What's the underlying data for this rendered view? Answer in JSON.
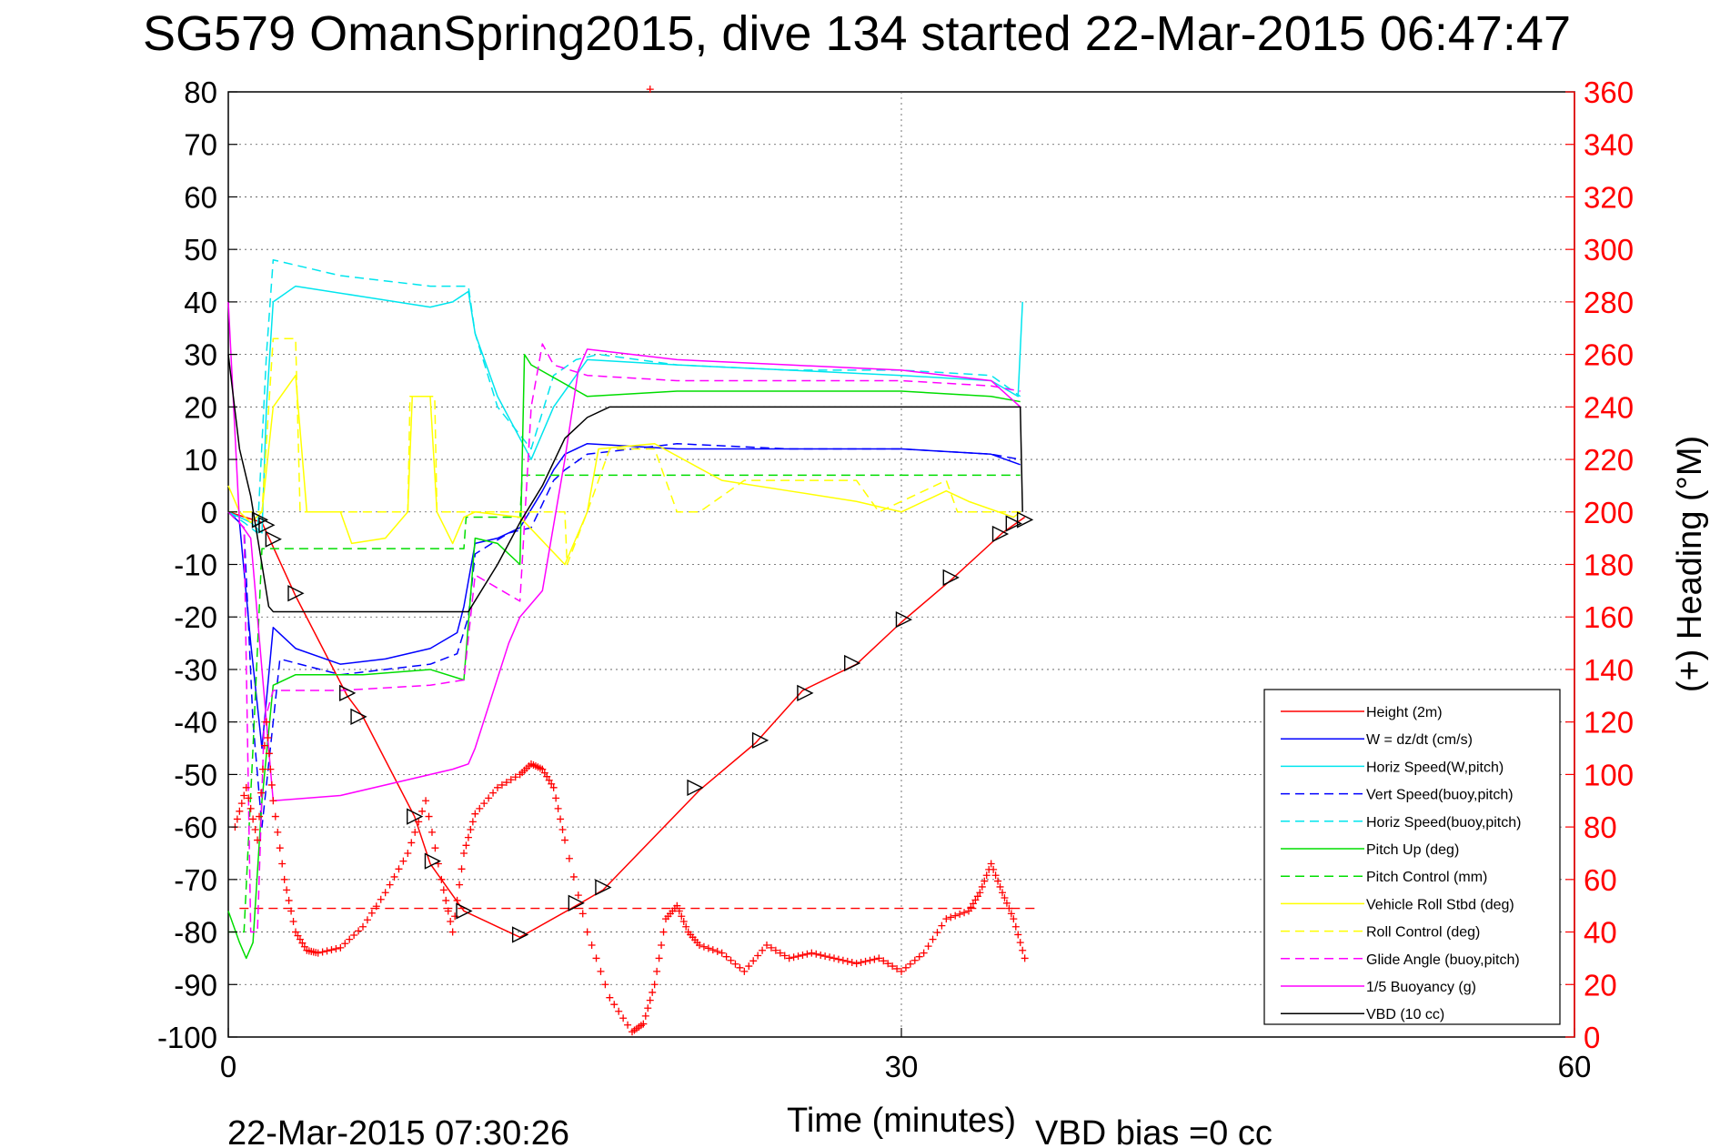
{
  "title": "SG579 OmanSpring2015, dive 134 started 22-Mar-2015 06:47:47",
  "footer": {
    "timestamp": "22-Mar-2015 07:30:26",
    "vbd_bias": "VBD bias =0 cc"
  },
  "chart_data": {
    "type": "line",
    "title": "SG579 OmanSpring2015, dive 134 started 22-Mar-2015 06:47:47",
    "xlabel": "Time (minutes)",
    "ylabel": "",
    "ylabel_right": "(+) Heading (°M)",
    "xlim": [
      0,
      60
    ],
    "ylim": [
      -100,
      80
    ],
    "ylim_right": [
      0,
      360
    ],
    "xticks": [
      0,
      30,
      60
    ],
    "xtick_labels": [
      "0",
      "30",
      "60"
    ],
    "yticks": [
      80,
      70,
      60,
      50,
      40,
      30,
      20,
      10,
      0,
      -10,
      -20,
      -30,
      -40,
      -50,
      -60,
      -70,
      -80,
      -90,
      -100
    ],
    "ytick_labels": [
      "80",
      "70",
      "60",
      "50",
      "40",
      "30",
      "20",
      "10",
      "0",
      "-10",
      "-20",
      "-30",
      "-40",
      "-50",
      "-60",
      "-70",
      "-80",
      "-90",
      "-100"
    ],
    "yticks_right": [
      360,
      340,
      320,
      300,
      280,
      260,
      240,
      220,
      200,
      180,
      160,
      140,
      120,
      100,
      80,
      60,
      40,
      20,
      0
    ],
    "ytick_labels_right": [
      "360",
      "340",
      "320",
      "300",
      "280",
      "260",
      "240",
      "220",
      "200",
      "180",
      "160",
      "140",
      "120",
      "100",
      "80",
      "60",
      "40",
      "20",
      "0"
    ],
    "grid": true,
    "legend_position": "bottom-right",
    "series": [
      {
        "name": "Height (2m)",
        "color": "#ff0000",
        "style": "solid",
        "x": [
          0,
          1.5,
          3,
          5.3,
          6,
          8.3,
          9,
          10.5,
          12,
          13,
          15.5,
          16.7,
          21,
          23.5,
          25.6,
          28,
          30,
          32.2,
          34.5,
          35.5
        ],
        "y": [
          0,
          -2,
          -16,
          -35,
          -39,
          -58,
          -67,
          -76,
          -79,
          -81,
          -75,
          -72,
          -53,
          -44,
          -34,
          -29,
          -21,
          -13,
          -4,
          -1
        ]
      },
      {
        "name": "W = dz/dt (cm/s)",
        "color": "#0000ff",
        "style": "solid",
        "x": [
          0,
          0.5,
          1,
          1.5,
          2,
          3,
          5,
          7,
          9,
          10.2,
          10.5,
          11,
          12,
          13,
          14,
          14.5,
          15,
          16,
          20,
          25,
          30,
          34,
          35.3
        ],
        "y": [
          0,
          -2,
          -25,
          -45,
          -22,
          -26,
          -29,
          -28,
          -26,
          -23,
          -18,
          -6,
          -5,
          -3,
          4,
          8,
          11,
          13,
          12,
          12,
          12,
          11,
          9
        ]
      },
      {
        "name": "Horiz Speed(W,pitch)",
        "color": "#00e5ee",
        "style": "solid",
        "x": [
          0,
          0.5,
          1,
          1.5,
          1.7,
          2,
          3,
          6,
          9,
          10,
          10.7,
          11,
          12,
          13.5,
          14.5,
          16,
          20,
          25,
          30,
          34,
          35.2,
          35.4
        ],
        "y": [
          0,
          -1,
          -2,
          -4,
          20,
          40,
          43,
          41,
          39,
          40,
          42,
          34,
          22,
          10,
          20,
          29,
          28,
          27,
          26,
          25,
          22,
          40
        ]
      },
      {
        "name": "Vert Speed(buoy,pitch)",
        "color": "#0000ff",
        "style": "dashed",
        "x": [
          0,
          0.7,
          1.1,
          1.5,
          2.3,
          5,
          9,
          10.2,
          10.7,
          11,
          12.5,
          13.5,
          14.5,
          15,
          16,
          20,
          25,
          30,
          34,
          35.3
        ],
        "y": [
          0,
          -3,
          -40,
          -60,
          -28,
          -31,
          -29,
          -27,
          -20,
          -8,
          -4,
          -3,
          6,
          8,
          11,
          13,
          12,
          12,
          11,
          10
        ]
      },
      {
        "name": "Horiz Speed(buoy,pitch)",
        "color": "#00e5ee",
        "style": "dashed",
        "x": [
          0,
          0.7,
          1.3,
          1.7,
          2,
          5,
          9,
          10.7,
          11,
          12,
          13.5,
          14.5,
          15.5,
          16.5,
          20,
          25,
          30,
          34,
          35.3
        ],
        "y": [
          0,
          -2,
          -4,
          30,
          48,
          45,
          43,
          43,
          34,
          20,
          12,
          26,
          29,
          30,
          28,
          27,
          27,
          26,
          22
        ]
      },
      {
        "name": "Pitch Up (deg)",
        "color": "#00dd00",
        "style": "solid",
        "x": [
          0,
          0.5,
          0.8,
          1.1,
          1.5,
          2,
          3,
          6,
          9,
          10.5,
          11,
          12,
          13,
          13.2,
          13.5,
          16,
          20,
          25,
          30,
          34,
          35.3
        ],
        "y": [
          -76,
          -82,
          -85,
          -82,
          -55,
          -33,
          -31,
          -31,
          -30,
          -32,
          -5,
          -6,
          -10,
          30,
          28,
          22,
          23,
          23,
          23,
          22,
          21
        ]
      },
      {
        "name": "Pitch Control (mm)",
        "color": "#00dd00",
        "style": "dashed",
        "x": [
          0,
          0.7,
          1.1,
          1.5,
          2.2,
          10.5,
          10.6,
          13,
          13.1,
          16,
          35.3
        ],
        "y": [
          -80,
          -80,
          -45,
          -7,
          -7,
          -7,
          -1,
          -1,
          7,
          7,
          7
        ]
      },
      {
        "name": "Vehicle Roll Stbd (deg)",
        "color": "#ffff00",
        "style": "solid",
        "x": [
          0,
          0.5,
          1,
          1.5,
          2,
          3,
          3.5,
          5,
          5.5,
          7,
          8,
          8.2,
          9,
          9.3,
          10,
          10.5,
          11,
          13,
          15,
          16,
          16.5,
          19,
          22,
          25,
          28,
          30,
          32,
          33,
          35,
          35.3
        ],
        "y": [
          5,
          0,
          -2,
          0,
          20,
          26,
          0,
          0,
          -6,
          -5,
          0,
          22,
          22,
          0,
          -6,
          -1,
          0,
          -1,
          -10,
          0,
          12,
          13,
          6,
          4,
          2,
          0,
          4,
          2,
          -1,
          0
        ]
      },
      {
        "name": "Roll Control (deg)",
        "color": "#ffff00",
        "style": "dashed",
        "x": [
          0,
          1,
          1.5,
          2,
          3,
          3.2,
          5,
          8,
          8.1,
          9.2,
          9.3,
          12,
          15,
          15.1,
          16,
          17,
          19,
          20,
          21,
          23,
          25,
          28,
          29,
          32,
          32.5,
          35.3
        ],
        "y": [
          0,
          0,
          0,
          33,
          33,
          0,
          0,
          0,
          22,
          22,
          0,
          0,
          0,
          -10,
          0,
          12,
          12,
          0,
          0,
          6,
          6,
          6,
          0,
          6,
          0,
          0
        ]
      },
      {
        "name": "Glide Angle (buoy,pitch)",
        "color": "#ff00ff",
        "style": "dashed",
        "x": [
          0,
          0.7,
          1,
          1.3,
          1.6,
          2,
          5,
          9,
          10.5,
          11,
          13,
          13.5,
          14,
          14.5,
          16,
          20,
          25,
          30,
          34,
          35.3
        ],
        "y": [
          0,
          -3,
          -80,
          -80,
          -40,
          -34,
          -34,
          -33,
          -32,
          -12,
          -17,
          20,
          32,
          28,
          26,
          25,
          25,
          25,
          24,
          23
        ]
      },
      {
        "name": "1/5 Buoyancy (g)",
        "color": "#ff00ff",
        "style": "solid",
        "x": [
          0,
          0.5,
          1,
          1.5,
          2,
          5,
          10,
          10.7,
          11,
          12.5,
          13,
          14,
          15,
          15.6,
          16,
          18,
          20,
          25,
          30,
          34,
          35.3
        ],
        "y": [
          40,
          -2,
          -5,
          -30,
          -55,
          -54,
          -49,
          -48,
          -45,
          -25,
          -20,
          -15,
          10,
          27,
          31,
          30,
          29,
          28,
          27,
          25,
          20
        ]
      },
      {
        "name": "VBD (10 cc)",
        "color": "#000000",
        "style": "solid",
        "x": [
          0,
          0.5,
          1,
          1.5,
          1.8,
          2,
          3,
          10.5,
          10.7,
          12,
          13,
          14,
          15,
          16,
          17,
          20,
          25,
          30,
          35.3,
          35.4
        ],
        "y": [
          30,
          12,
          3,
          -10,
          -18,
          -19,
          -19,
          -19,
          -19,
          -10,
          -2,
          5,
          14,
          18,
          20,
          20,
          20,
          20,
          20,
          0
        ]
      }
    ],
    "heading": {
      "name": "(+) Heading (°M)",
      "color": "#ff0000",
      "marker": "+",
      "axis": "right",
      "x": [
        0.3,
        0.8,
        1.3,
        1.7,
        2,
        2.5,
        3,
        3.5,
        4,
        5,
        6,
        7,
        8,
        8.8,
        9.5,
        10,
        10.5,
        11,
        12,
        13,
        13.5,
        14,
        14.5,
        15,
        16,
        17,
        18,
        18.5,
        19,
        19.5,
        20,
        20.5,
        21,
        22,
        23,
        24,
        25,
        26,
        27,
        28,
        29,
        30,
        31,
        32,
        33,
        33.5,
        34,
        34.5,
        35,
        35.5
      ],
      "y": [
        80,
        95,
        75,
        120,
        90,
        60,
        40,
        33,
        32,
        34,
        42,
        55,
        70,
        90,
        60,
        40,
        70,
        85,
        95,
        100,
        104,
        102,
        95,
        75,
        40,
        15,
        2,
        5,
        20,
        45,
        50,
        40,
        35,
        32,
        25,
        35,
        30,
        32,
        30,
        28,
        30,
        25,
        32,
        45,
        48,
        55,
        66,
        55,
        45,
        30
      ],
      "outlier": {
        "x": 18.8,
        "y": 361
      }
    },
    "reference_line": {
      "color": "#ff0000",
      "style": "dashed",
      "x": [
        0.5,
        36.1
      ],
      "y": [
        -75.5,
        -75.5
      ]
    },
    "triangle_markers": {
      "color": "#000000",
      "x": [
        1.4,
        1.7,
        2,
        3,
        5.3,
        5.8,
        8.3,
        9.1,
        10.5,
        13,
        15.5,
        16.7,
        20.8,
        23.7,
        25.7,
        27.8,
        30.1,
        32.2,
        34.4,
        35,
        35.5
      ],
      "y": [
        -1.5,
        -2.5,
        -5.2,
        -15.5,
        -34.5,
        -39,
        -58,
        -66.5,
        -76,
        -80.5,
        -74.5,
        -71.5,
        -52.5,
        -43.5,
        -34.5,
        -28.8,
        -20.5,
        -12.5,
        -4.2,
        -2.2,
        -1.5
      ]
    }
  }
}
